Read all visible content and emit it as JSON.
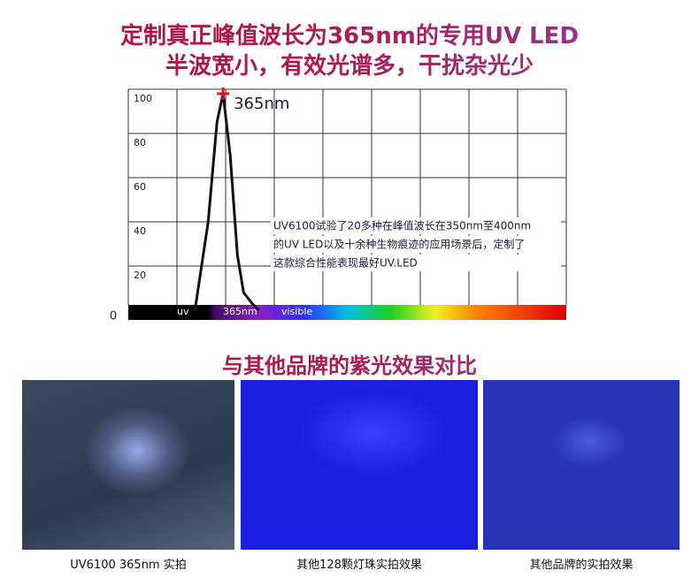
{
  "header": {
    "title_line1": "定制真正峰值波长为365nm的专用UV LED",
    "title_line2": "半波宽小，有效光谱多，干扰杂光少"
  },
  "chart_data": {
    "type": "line",
    "x": [
      359.5,
      362.1,
      363.8,
      365,
      366.4,
      367.8,
      369,
      370.7,
      372
    ],
    "values": [
      0,
      40,
      85,
      98,
      70,
      25,
      8,
      3,
      0
    ],
    "color": "#111111",
    "xlim": [
      346.5,
      432
    ],
    "ylim": [
      0,
      100
    ],
    "yticks": [
      0,
      20,
      40,
      60,
      80,
      100
    ],
    "grid": true,
    "peak_label": "365nm",
    "annotation": [
      "UV6100试验了20多种在峰值波长在350nm至400nm",
      "的UV LED以及十余种生物痕迹的应用场景后，定制了",
      "这款综合性能表现最好UV.LED"
    ],
    "spectrum_labels": [
      "uv",
      "365nm",
      "visible"
    ]
  },
  "comparison": {
    "title": "与其他品牌的紫光效果对比",
    "photos": [
      {
        "caption": "UV6100 365nm 实拍"
      },
      {
        "caption": "其他128颗灯珠实拍效果"
      },
      {
        "caption": "其他品牌的实拍效果"
      }
    ]
  }
}
